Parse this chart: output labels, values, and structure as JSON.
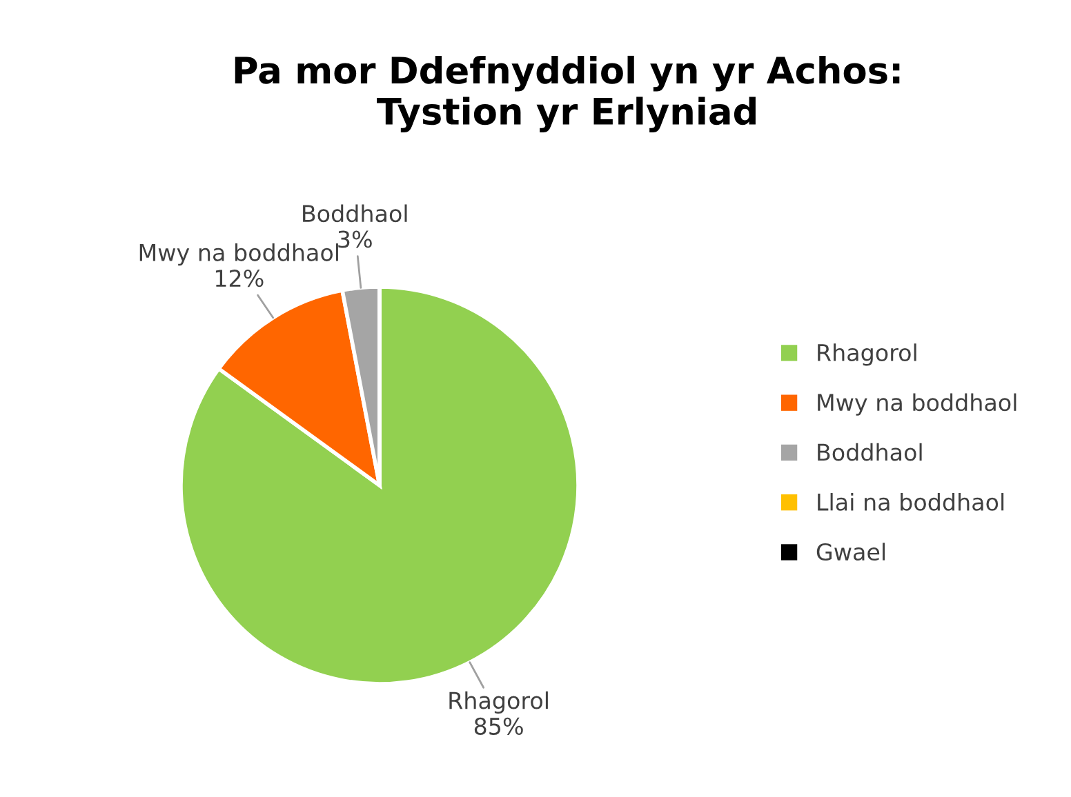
{
  "chart_data": {
    "type": "pie",
    "title": "Pa mor Ddefnyddiol yn yr Achos:\nTystion yr Erlyniad",
    "categories": [
      "Rhagorol",
      "Mwy na boddhaol",
      "Boddhaol",
      "Llai na boddhaol",
      "Gwael"
    ],
    "values": [
      85,
      12,
      3,
      0,
      0
    ],
    "colors": [
      "#92d050",
      "#ff6600",
      "#a5a5a5",
      "#ffc000",
      "#000000"
    ],
    "value_labels": [
      "85%",
      "12%",
      "3%",
      null,
      null
    ],
    "legend": "right"
  }
}
